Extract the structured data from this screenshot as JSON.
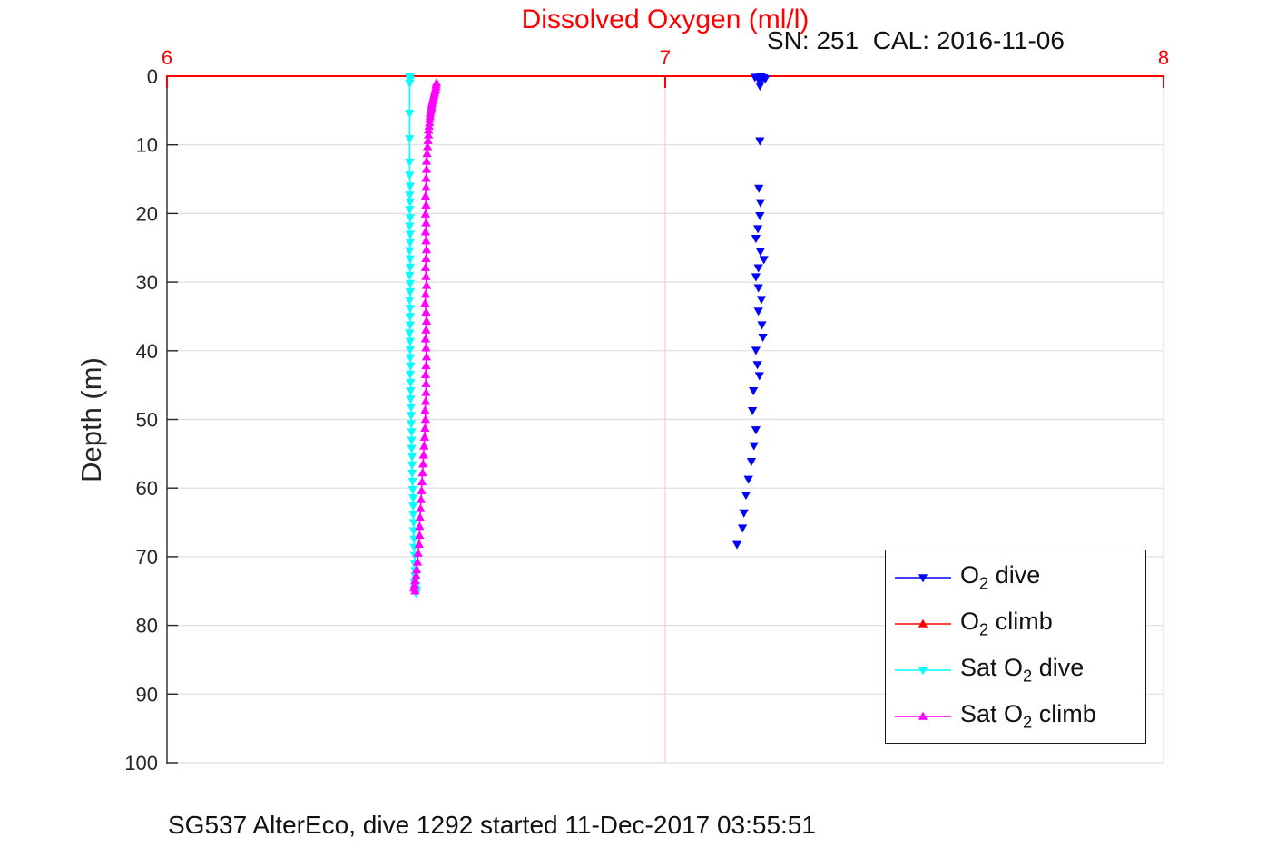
{
  "chart_data": {
    "type": "scatter",
    "title": "Dissolved Oxygen (ml/l)",
    "annotation": "SN: 251  CAL: 2016-11-06",
    "caption": "SG537 AlterEco, dive 1292 started 11-Dec-2017 03:55:51",
    "xlabel": "",
    "ylabel": "Depth (m)",
    "x_axis": {
      "position": "top",
      "min": 6,
      "max": 8,
      "ticks": [
        6,
        7,
        8
      ],
      "color": "#ff0000",
      "grid": true,
      "grid_color": "#f8cdcd"
    },
    "y_axis": {
      "min": 0,
      "max": 100,
      "reversed": true,
      "ticks": [
        0,
        10,
        20,
        30,
        40,
        50,
        60,
        70,
        80,
        90,
        100
      ],
      "label": "Depth (m)",
      "color": "#262626",
      "grid": true,
      "grid_color": "#dedede"
    },
    "legend_position": "lower right",
    "series": [
      {
        "name": "o2-dive",
        "legend": {
          "pre": "O",
          "sub": "2",
          "post": " dive"
        },
        "color": "#0000ff",
        "marker": "triangle-down",
        "line": false,
        "points": [
          [
            7.18,
            0.15
          ],
          [
            7.186,
            0.3
          ],
          [
            7.192,
            0.1
          ],
          [
            7.197,
            0.2
          ],
          [
            7.201,
            0.35
          ],
          [
            7.191,
            0.8
          ],
          [
            7.19,
            1.4
          ],
          [
            7.19,
            9.4
          ],
          [
            7.188,
            16.3
          ],
          [
            7.191,
            18.4
          ],
          [
            7.19,
            20.3
          ],
          [
            7.186,
            22.2
          ],
          [
            7.182,
            23.6
          ],
          [
            7.191,
            25.5
          ],
          [
            7.198,
            26.7
          ],
          [
            7.187,
            27.9
          ],
          [
            7.182,
            29.2
          ],
          [
            7.187,
            30.8
          ],
          [
            7.193,
            32.5
          ],
          [
            7.187,
            34.2
          ],
          [
            7.194,
            36.2
          ],
          [
            7.196,
            38.0
          ],
          [
            7.182,
            39.9
          ],
          [
            7.185,
            42.0
          ],
          [
            7.189,
            43.6
          ],
          [
            7.177,
            45.8
          ],
          [
            7.175,
            48.7
          ],
          [
            7.182,
            51.5
          ],
          [
            7.178,
            53.8
          ],
          [
            7.173,
            56.1
          ],
          [
            7.167,
            58.7
          ],
          [
            7.162,
            61.0
          ],
          [
            7.158,
            63.6
          ],
          [
            7.155,
            65.8
          ],
          [
            7.144,
            68.2
          ]
        ]
      },
      {
        "name": "o2-climb",
        "legend": {
          "pre": "O",
          "sub": "2",
          "post": " climb"
        },
        "color": "#ff0000",
        "marker": "triangle-up",
        "line": true,
        "points": []
      },
      {
        "name": "sat-o2-dive",
        "legend": {
          "pre": "Sat O",
          "sub": "2",
          "post": " dive"
        },
        "color": "#00ffff",
        "marker": "triangle-down",
        "line": true,
        "points": [
          [
            6.487,
            0.0
          ],
          [
            6.487,
            0.2
          ],
          [
            6.488,
            0.5
          ],
          [
            6.487,
            1.0
          ],
          [
            6.487,
            5.4
          ],
          [
            6.487,
            9.1
          ],
          [
            6.487,
            12.5
          ],
          [
            6.487,
            14.4
          ],
          [
            6.488,
            16.0
          ],
          [
            6.487,
            17.3
          ],
          [
            6.488,
            18.3
          ],
          [
            6.487,
            19.4
          ],
          [
            6.488,
            20.6
          ],
          [
            6.487,
            21.8
          ],
          [
            6.488,
            23.0
          ],
          [
            6.488,
            24.2
          ],
          [
            6.487,
            25.4
          ],
          [
            6.488,
            26.6
          ],
          [
            6.488,
            27.8
          ],
          [
            6.487,
            29.0
          ],
          [
            6.488,
            30.2
          ],
          [
            6.488,
            31.4
          ],
          [
            6.487,
            32.6
          ],
          [
            6.488,
            33.8
          ],
          [
            6.488,
            35.0
          ],
          [
            6.488,
            36.2
          ],
          [
            6.487,
            37.4
          ],
          [
            6.488,
            38.6
          ],
          [
            6.488,
            39.8
          ],
          [
            6.488,
            41.0
          ],
          [
            6.489,
            42.2
          ],
          [
            6.488,
            43.4
          ],
          [
            6.489,
            44.6
          ],
          [
            6.489,
            45.8
          ],
          [
            6.489,
            47.0
          ],
          [
            6.49,
            48.2
          ],
          [
            6.49,
            49.4
          ],
          [
            6.49,
            50.6
          ],
          [
            6.491,
            51.8
          ],
          [
            6.491,
            53.0
          ],
          [
            6.491,
            54.2
          ],
          [
            6.492,
            55.4
          ],
          [
            6.492,
            56.6
          ],
          [
            6.492,
            57.8
          ],
          [
            6.493,
            59.0
          ],
          [
            6.493,
            60.2
          ],
          [
            6.494,
            61.4
          ],
          [
            6.494,
            62.6
          ],
          [
            6.494,
            63.8
          ],
          [
            6.495,
            65.0
          ],
          [
            6.495,
            66.2
          ],
          [
            6.496,
            67.4
          ],
          [
            6.496,
            68.6
          ],
          [
            6.497,
            69.8
          ],
          [
            6.497,
            71.0
          ],
          [
            6.498,
            72.0
          ],
          [
            6.498,
            72.8
          ],
          [
            6.499,
            73.4
          ],
          [
            6.497,
            73.8
          ],
          [
            6.5,
            74.2
          ],
          [
            6.498,
            74.5
          ],
          [
            6.501,
            74.8
          ],
          [
            6.499,
            75.0
          ],
          [
            6.5,
            75.3
          ]
        ]
      },
      {
        "name": "sat-o2-climb",
        "legend": {
          "pre": "Sat O",
          "sub": "2",
          "post": " climb"
        },
        "color": "#ff00ff",
        "marker": "triangle-up",
        "line": true,
        "points": [
          [
            6.541,
            1.0
          ],
          [
            6.54,
            1.3
          ],
          [
            6.54,
            1.6
          ],
          [
            6.539,
            1.9
          ],
          [
            6.538,
            2.2
          ],
          [
            6.537,
            2.5
          ],
          [
            6.536,
            2.8
          ],
          [
            6.535,
            3.1
          ],
          [
            6.534,
            3.4
          ],
          [
            6.533,
            3.7
          ],
          [
            6.532,
            4.0
          ],
          [
            6.531,
            4.3
          ],
          [
            6.531,
            4.6
          ],
          [
            6.53,
            4.9
          ],
          [
            6.529,
            5.2
          ],
          [
            6.528,
            5.5
          ],
          [
            6.528,
            5.9
          ],
          [
            6.527,
            6.3
          ],
          [
            6.527,
            6.8
          ],
          [
            6.526,
            7.3
          ],
          [
            6.525,
            7.9
          ],
          [
            6.525,
            8.6
          ],
          [
            6.524,
            9.4
          ],
          [
            6.523,
            10.3
          ],
          [
            6.522,
            11.3
          ],
          [
            6.521,
            12.4
          ],
          [
            6.521,
            13.6
          ],
          [
            6.52,
            14.9
          ],
          [
            6.52,
            16.2
          ],
          [
            6.519,
            17.5
          ],
          [
            6.52,
            18.8
          ],
          [
            6.519,
            20.1
          ],
          [
            6.52,
            21.4
          ],
          [
            6.519,
            22.7
          ],
          [
            6.52,
            24.0
          ],
          [
            6.521,
            25.3
          ],
          [
            6.52,
            26.6
          ],
          [
            6.519,
            27.9
          ],
          [
            6.52,
            29.2
          ],
          [
            6.521,
            30.5
          ],
          [
            6.519,
            31.8
          ],
          [
            6.518,
            33.1
          ],
          [
            6.52,
            34.4
          ],
          [
            6.521,
            35.7
          ],
          [
            6.52,
            37.0
          ],
          [
            6.519,
            38.3
          ],
          [
            6.52,
            39.6
          ],
          [
            6.521,
            40.9
          ],
          [
            6.52,
            42.2
          ],
          [
            6.519,
            43.5
          ],
          [
            6.52,
            44.8
          ],
          [
            6.52,
            46.1
          ],
          [
            6.519,
            47.4
          ],
          [
            6.518,
            48.7
          ],
          [
            6.519,
            50.0
          ],
          [
            6.518,
            51.3
          ],
          [
            6.517,
            52.6
          ],
          [
            6.516,
            53.9
          ],
          [
            6.515,
            55.2
          ],
          [
            6.514,
            56.5
          ],
          [
            6.513,
            57.8
          ],
          [
            6.512,
            59.1
          ],
          [
            6.511,
            60.4
          ],
          [
            6.51,
            61.7
          ],
          [
            6.509,
            63.0
          ],
          [
            6.508,
            64.3
          ],
          [
            6.507,
            65.6
          ],
          [
            6.507,
            66.9
          ],
          [
            6.506,
            68.2
          ],
          [
            6.504,
            69.5
          ],
          [
            6.503,
            70.8
          ],
          [
            6.501,
            71.9
          ],
          [
            6.5,
            72.8
          ],
          [
            6.498,
            73.5
          ],
          [
            6.497,
            74.1
          ],
          [
            6.496,
            74.6
          ],
          [
            6.498,
            75.0
          ]
        ]
      }
    ]
  }
}
